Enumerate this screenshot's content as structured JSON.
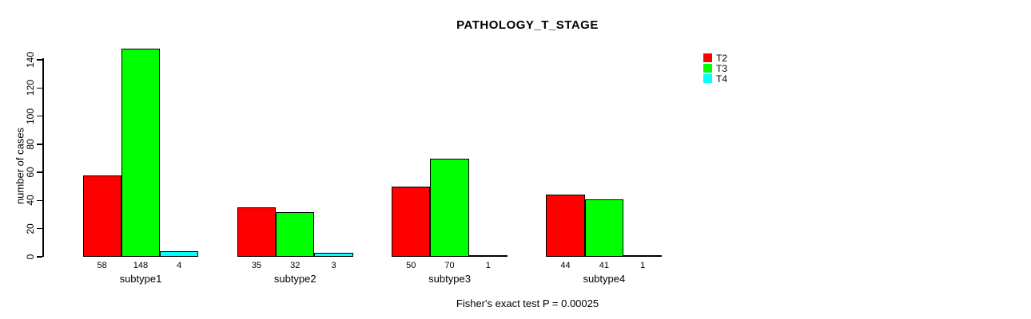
{
  "title": "PATHOLOGY_T_STAGE",
  "ylabel": "number of cases",
  "footer": "Fisher's exact test P = 0.00025",
  "legend": {
    "position": "right",
    "items": [
      {
        "label": "T2",
        "color": "#ff0000"
      },
      {
        "label": "T3",
        "color": "#00ff00"
      },
      {
        "label": "T4",
        "color": "#00ffff"
      }
    ]
  },
  "chart_data": {
    "type": "bar",
    "title": "PATHOLOGY_T_STAGE",
    "categories": [
      "subtype1",
      "subtype2",
      "subtype3",
      "subtype4"
    ],
    "series": [
      {
        "name": "T2",
        "color": "#ff0000",
        "values": [
          58,
          35,
          50,
          44
        ]
      },
      {
        "name": "T3",
        "color": "#00ff00",
        "values": [
          148,
          32,
          70,
          41
        ]
      },
      {
        "name": "T4",
        "color": "#00ffff",
        "values": [
          4,
          3,
          1,
          1
        ]
      }
    ],
    "xlabel": "",
    "ylabel": "number of cases",
    "yticks": [
      0,
      20,
      40,
      60,
      80,
      100,
      120,
      140
    ],
    "ylim": [
      0,
      148
    ],
    "bar_value_labels_shown": true,
    "grid": false,
    "legend_position": "top-right",
    "annotation": "Fisher's exact test P = 0.00025"
  }
}
